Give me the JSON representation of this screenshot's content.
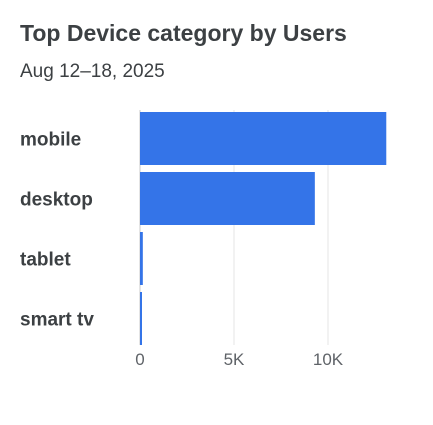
{
  "header": {
    "title": "Top Device category by Users",
    "subtitle": "Aug 12–18, 2025"
  },
  "colors": {
    "bar": "#3474e8",
    "grid": "#e6e6e6",
    "axis": "#c8c8c8"
  },
  "chart_data": {
    "type": "bar",
    "orientation": "horizontal",
    "title": "Top Device category by Users",
    "subtitle": "Aug 12–18, 2025",
    "categories": [
      "mobile",
      "desktop",
      "tablet",
      "smart tv"
    ],
    "values": [
      13100,
      9300,
      150,
      40
    ],
    "xlim": [
      0,
      13500
    ],
    "xticks": [
      0,
      5000,
      10000
    ],
    "xtick_labels": [
      "0",
      "5K",
      "10K"
    ],
    "grid": true,
    "legend": "none"
  }
}
